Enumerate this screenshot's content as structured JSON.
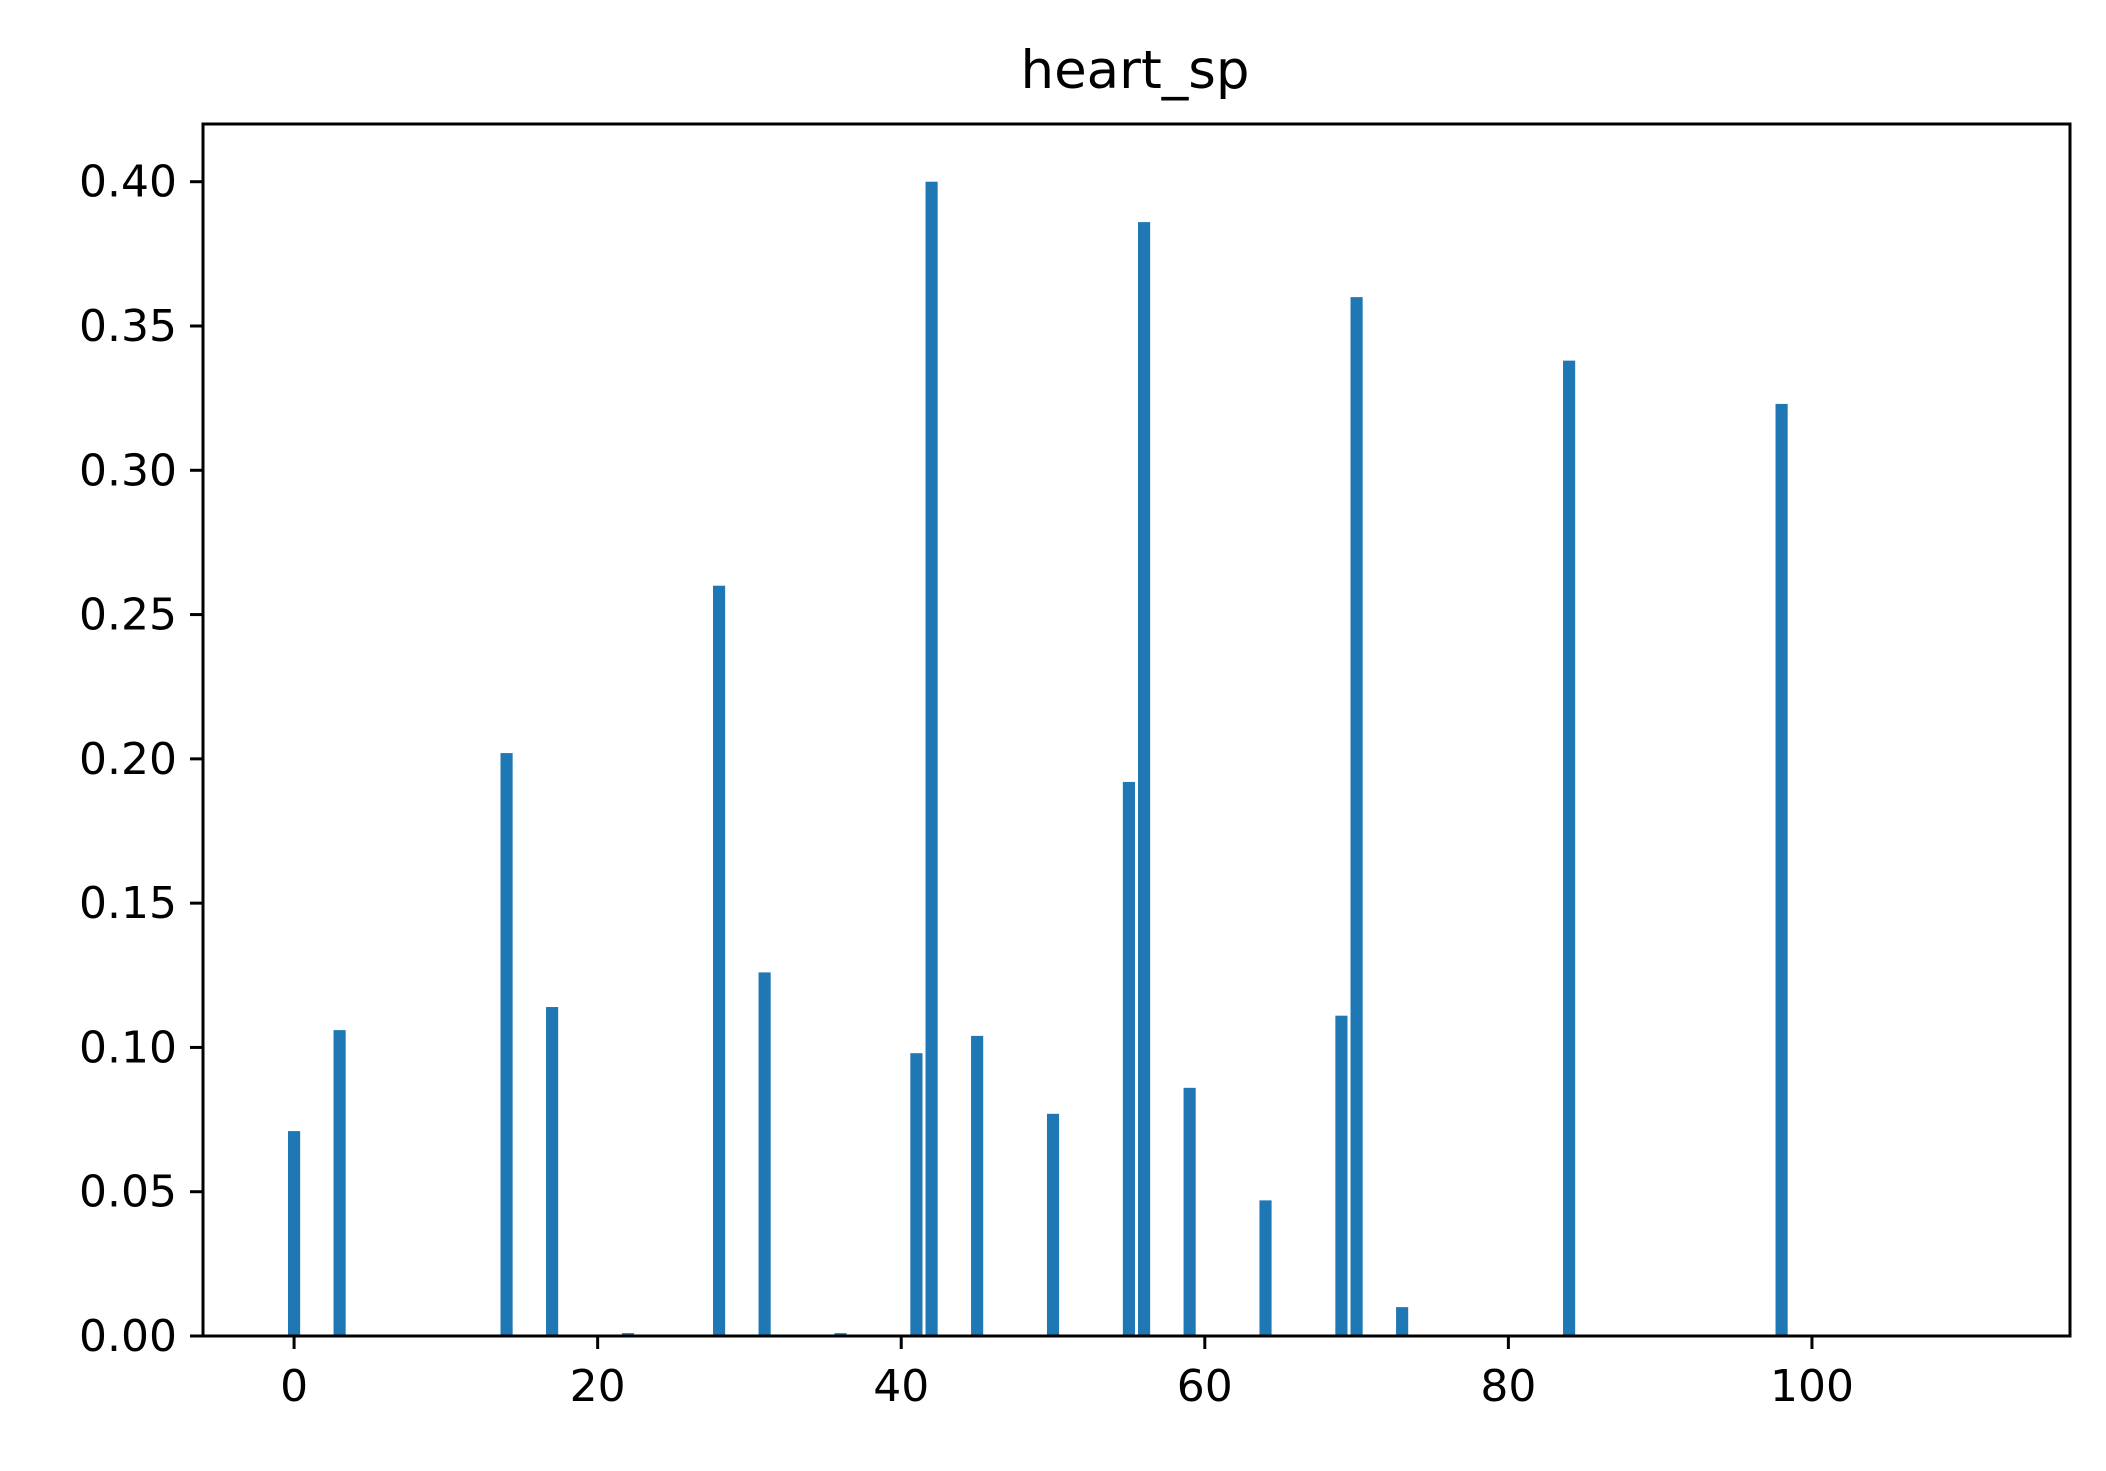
{
  "chart_data": {
    "type": "bar",
    "title": "heart_sp",
    "xlabel": "",
    "ylabel": "",
    "xlim": [
      -6,
      117
    ],
    "ylim": [
      0,
      0.42
    ],
    "xticks": [
      0,
      20,
      40,
      60,
      80,
      100
    ],
    "xtick_labels": [
      "0",
      "20",
      "40",
      "60",
      "80",
      "100"
    ],
    "yticks": [
      0,
      0.05,
      0.1,
      0.15,
      0.2,
      0.25,
      0.3,
      0.35,
      0.4
    ],
    "ytick_labels": [
      "0.00",
      "0.05",
      "0.10",
      "0.15",
      "0.20",
      "0.25",
      "0.30",
      "0.35",
      "0.40"
    ],
    "grid": false,
    "bar_color": "#1f77b4",
    "x": [
      0,
      3,
      14,
      17,
      22,
      28,
      31,
      36,
      41,
      42,
      45,
      50,
      55,
      56,
      59,
      64,
      69,
      70,
      73,
      84,
      98
    ],
    "values": [
      0.071,
      0.106,
      0.202,
      0.114,
      0.001,
      0.26,
      0.126,
      0.001,
      0.098,
      0.4,
      0.104,
      0.077,
      0.192,
      0.386,
      0.086,
      0.047,
      0.111,
      0.36,
      0.01,
      0.338,
      0.323
    ]
  }
}
